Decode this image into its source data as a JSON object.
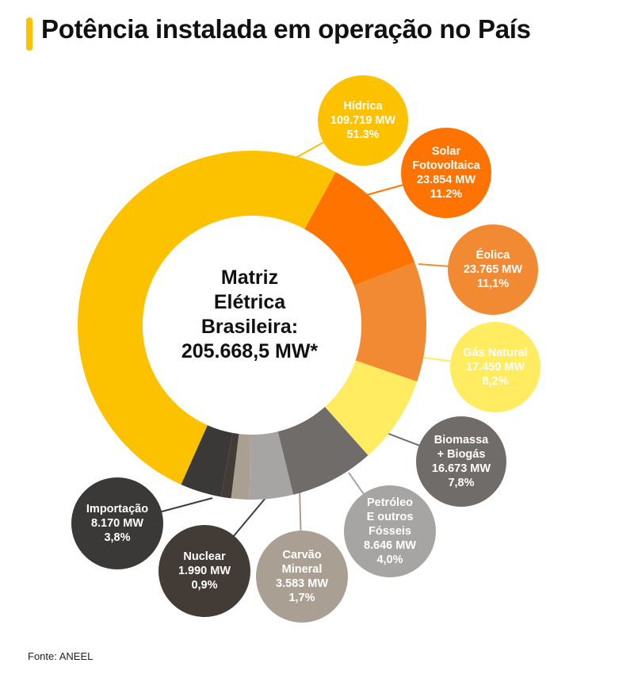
{
  "title": "Potência instalada em operação no País",
  "source": "Fonte: ANEEL",
  "center_label": {
    "line1": "Matriz",
    "line2": "Elétrica",
    "line3": "Brasileira:",
    "line4": "205.668,5 MW*"
  },
  "chart_data": {
    "type": "pie",
    "title": "Potência instalada em operação no País",
    "total_label": "205.668,5 MW*",
    "unit": "MW",
    "slices": [
      {
        "name": "Hídrica",
        "name2": "",
        "mw_label": "109.719 MW",
        "pct_label": "51.3%",
        "value": 109719,
        "percent": 51.3,
        "color": "#fcc200",
        "text_color": "#ffffff"
      },
      {
        "name": "Solar",
        "name2": "Fotovoltaica",
        "mw_label": "23.854 MW",
        "pct_label": "11.2%",
        "value": 23854,
        "percent": 11.2,
        "color": "#ff7300",
        "text_color": "#ffffff"
      },
      {
        "name": "Éolica",
        "name2": "",
        "mw_label": "23.765 MW",
        "pct_label": "11,1%",
        "value": 23765,
        "percent": 11.1,
        "color": "#f28a33",
        "text_color": "#ffffff"
      },
      {
        "name": "Gás Natural",
        "name2": "",
        "mw_label": "17.450 MW",
        "pct_label": "8,2%",
        "value": 17450,
        "percent": 8.2,
        "color": "#ffec61",
        "text_color": "#ffffff"
      },
      {
        "name": "Biomassa",
        "name2": "+ Biogás",
        "mw_label": "16.673 MW",
        "pct_label": "7,8%",
        "value": 16673,
        "percent": 7.8,
        "color": "#6f6c69",
        "text_color": "#ffffff"
      },
      {
        "name": "Petróleo",
        "name2": "E outros",
        "name3": "Fósseis",
        "mw_label": "8.646 MW",
        "pct_label": "4,0%",
        "value": 8646,
        "percent": 4.0,
        "color": "#a7a5a3",
        "text_color": "#ffffff"
      },
      {
        "name": "Carvão",
        "name2": "Mineral",
        "mw_label": "3.583 MW",
        "pct_label": "1,7%",
        "value": 3583,
        "percent": 1.7,
        "color": "#a9a093",
        "text_color": "#ffffff"
      },
      {
        "name": "Nuclear",
        "name2": "",
        "mw_label": "1.990 MW",
        "pct_label": "0,9%",
        "value": 1990,
        "percent": 0.9,
        "color": "#433c36",
        "text_color": "#ffffff"
      },
      {
        "name": "Importação",
        "name2": "",
        "mw_label": "8.170 MW",
        "pct_label": "3,8%",
        "value": 8170,
        "percent": 3.8,
        "color": "#3a3938",
        "text_color": "#ffffff"
      }
    ],
    "legend": "callout-bubbles"
  }
}
